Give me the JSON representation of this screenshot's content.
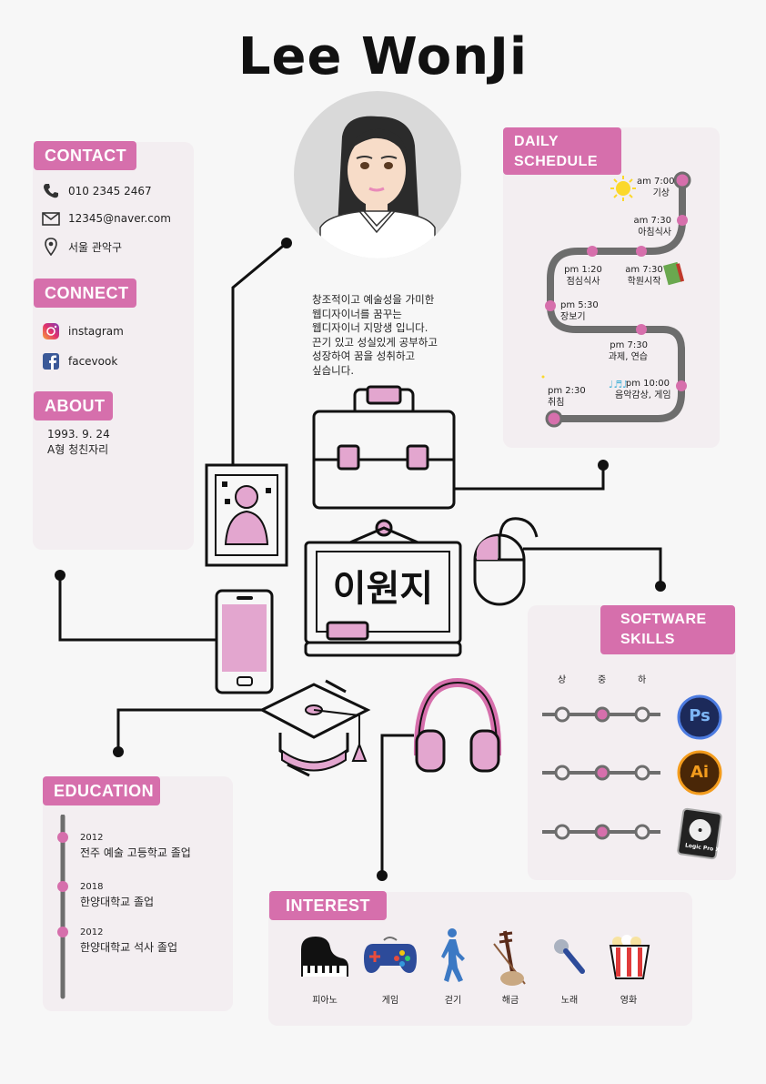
{
  "name": "Lee WonJi",
  "contact": {
    "title": "CONTACT",
    "phone": "010 2345 2467",
    "email": "12345@naver.com",
    "address": "서울 관악구"
  },
  "connect": {
    "title": "CONNECT",
    "instagram": "instagram",
    "facebook": "facevook"
  },
  "about": {
    "title": "ABOUT",
    "birth": "1993. 9. 24",
    "info": "A형 청친자리"
  },
  "intro": [
    "창조적이고 예술성을 가미한",
    "웹디자이너를 꿈꾸는",
    "웹디자이너 지망생 입니다.",
    "끈기 있고 성실있게 공부하고",
    "성장하여 꿈을 성취하고",
    "싶습니다."
  ],
  "sign_text": "이원지",
  "daily": {
    "title_line1": "DAILY",
    "title_line2": "SCHEDULE",
    "items": [
      {
        "time": "am 7:00",
        "label": "기상"
      },
      {
        "time": "am 7:30",
        "label": "아침식사"
      },
      {
        "time": "am 7:30",
        "label": "학원시작"
      },
      {
        "time": "pm 1:20",
        "label": "점심식사"
      },
      {
        "time": "pm 5:30",
        "label": "장보기"
      },
      {
        "time": "pm 7:30",
        "label": "과제, 연습"
      },
      {
        "time": "pm 10:00",
        "label": "음악감상, 게임"
      },
      {
        "time": "pm 2:30",
        "label": "취침"
      }
    ]
  },
  "software": {
    "title_line1": "SOFTWARE",
    "title_line2": "SKILLS",
    "levels": [
      "상",
      "중",
      "하"
    ],
    "skills": [
      {
        "name": "Ps",
        "level": 2
      },
      {
        "name": "Ai",
        "level": 2
      },
      {
        "name": "Logic Pro X",
        "level": 2
      }
    ]
  },
  "education": {
    "title": "EDUCATION",
    "items": [
      {
        "year": "2012",
        "desc": "전주 예술 고등학교 졸업"
      },
      {
        "year": "2018",
        "desc": "한양대학교 졸업"
      },
      {
        "year": "2012",
        "desc": "한양대학교 석사 졸업"
      }
    ]
  },
  "interest": {
    "title": "INTEREST",
    "items": [
      "피아노",
      "게임",
      "걷기",
      "해금",
      "노래",
      "영화"
    ]
  },
  "colors": {
    "pink": "#d66fac",
    "light_pink": "#e3a6cf",
    "panel": "#f3eef1",
    "dark": "#111111",
    "track": "#6d6d6d"
  }
}
